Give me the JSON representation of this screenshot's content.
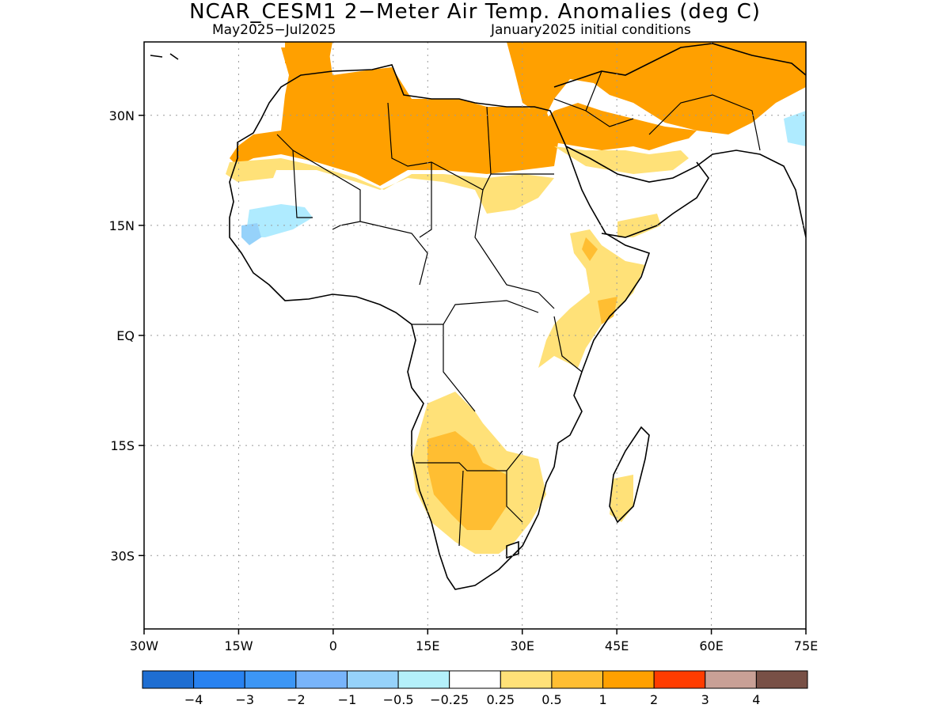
{
  "title": "NCAR_CESM1 2−Meter Air Temp. Anomalies (deg C)",
  "subtitle_left": "May2025−Jul2025",
  "subtitle_right": "January2025 initial conditions",
  "map": {
    "lon_range": [
      -30,
      75
    ],
    "lat_range": [
      -40,
      40
    ],
    "x_ticks": [
      {
        "value": -30,
        "label": "30W"
      },
      {
        "value": -15,
        "label": "15W"
      },
      {
        "value": 0,
        "label": "0"
      },
      {
        "value": 15,
        "label": "15E"
      },
      {
        "value": 30,
        "label": "30E"
      },
      {
        "value": 45,
        "label": "45E"
      },
      {
        "value": 60,
        "label": "60E"
      },
      {
        "value": 75,
        "label": "75E"
      }
    ],
    "y_ticks": [
      {
        "value": 30,
        "label": "30N"
      },
      {
        "value": 15,
        "label": "15N"
      },
      {
        "value": 0,
        "label": "EQ"
      },
      {
        "value": -15,
        "label": "15S"
      },
      {
        "value": -30,
        "label": "30S"
      }
    ],
    "grid": "dotted",
    "anomaly_regions": [
      {
        "name": "north-africa-1",
        "level": 2,
        "color": "#ffa000"
      },
      {
        "name": "arabia-1",
        "level": 2,
        "color": "#ffa000"
      },
      {
        "name": "sahara-half",
        "level": 0.5,
        "color": "#ffe178"
      },
      {
        "name": "southern-africa-half",
        "level": 0.5,
        "color": "#ffe178"
      },
      {
        "name": "southern-africa-1",
        "level": 1,
        "color": "#ffbe32"
      },
      {
        "name": "west-africa-cool",
        "level": -0.25,
        "color": "#afebff"
      }
    ]
  },
  "colorbar": {
    "colors": [
      "#1e6ed2",
      "#2882f0",
      "#3c96f5",
      "#78b4fa",
      "#96d2fa",
      "#b4f0fa",
      "#ffffff",
      "#ffe178",
      "#ffbe32",
      "#ffa000",
      "#ff3c00",
      "#c8a096",
      "#785046"
    ],
    "labels": [
      "−4",
      "−3",
      "−2",
      "−1",
      "−0.5",
      "−0.25",
      "0.25",
      "0.5",
      "1",
      "2",
      "3",
      "4"
    ]
  }
}
